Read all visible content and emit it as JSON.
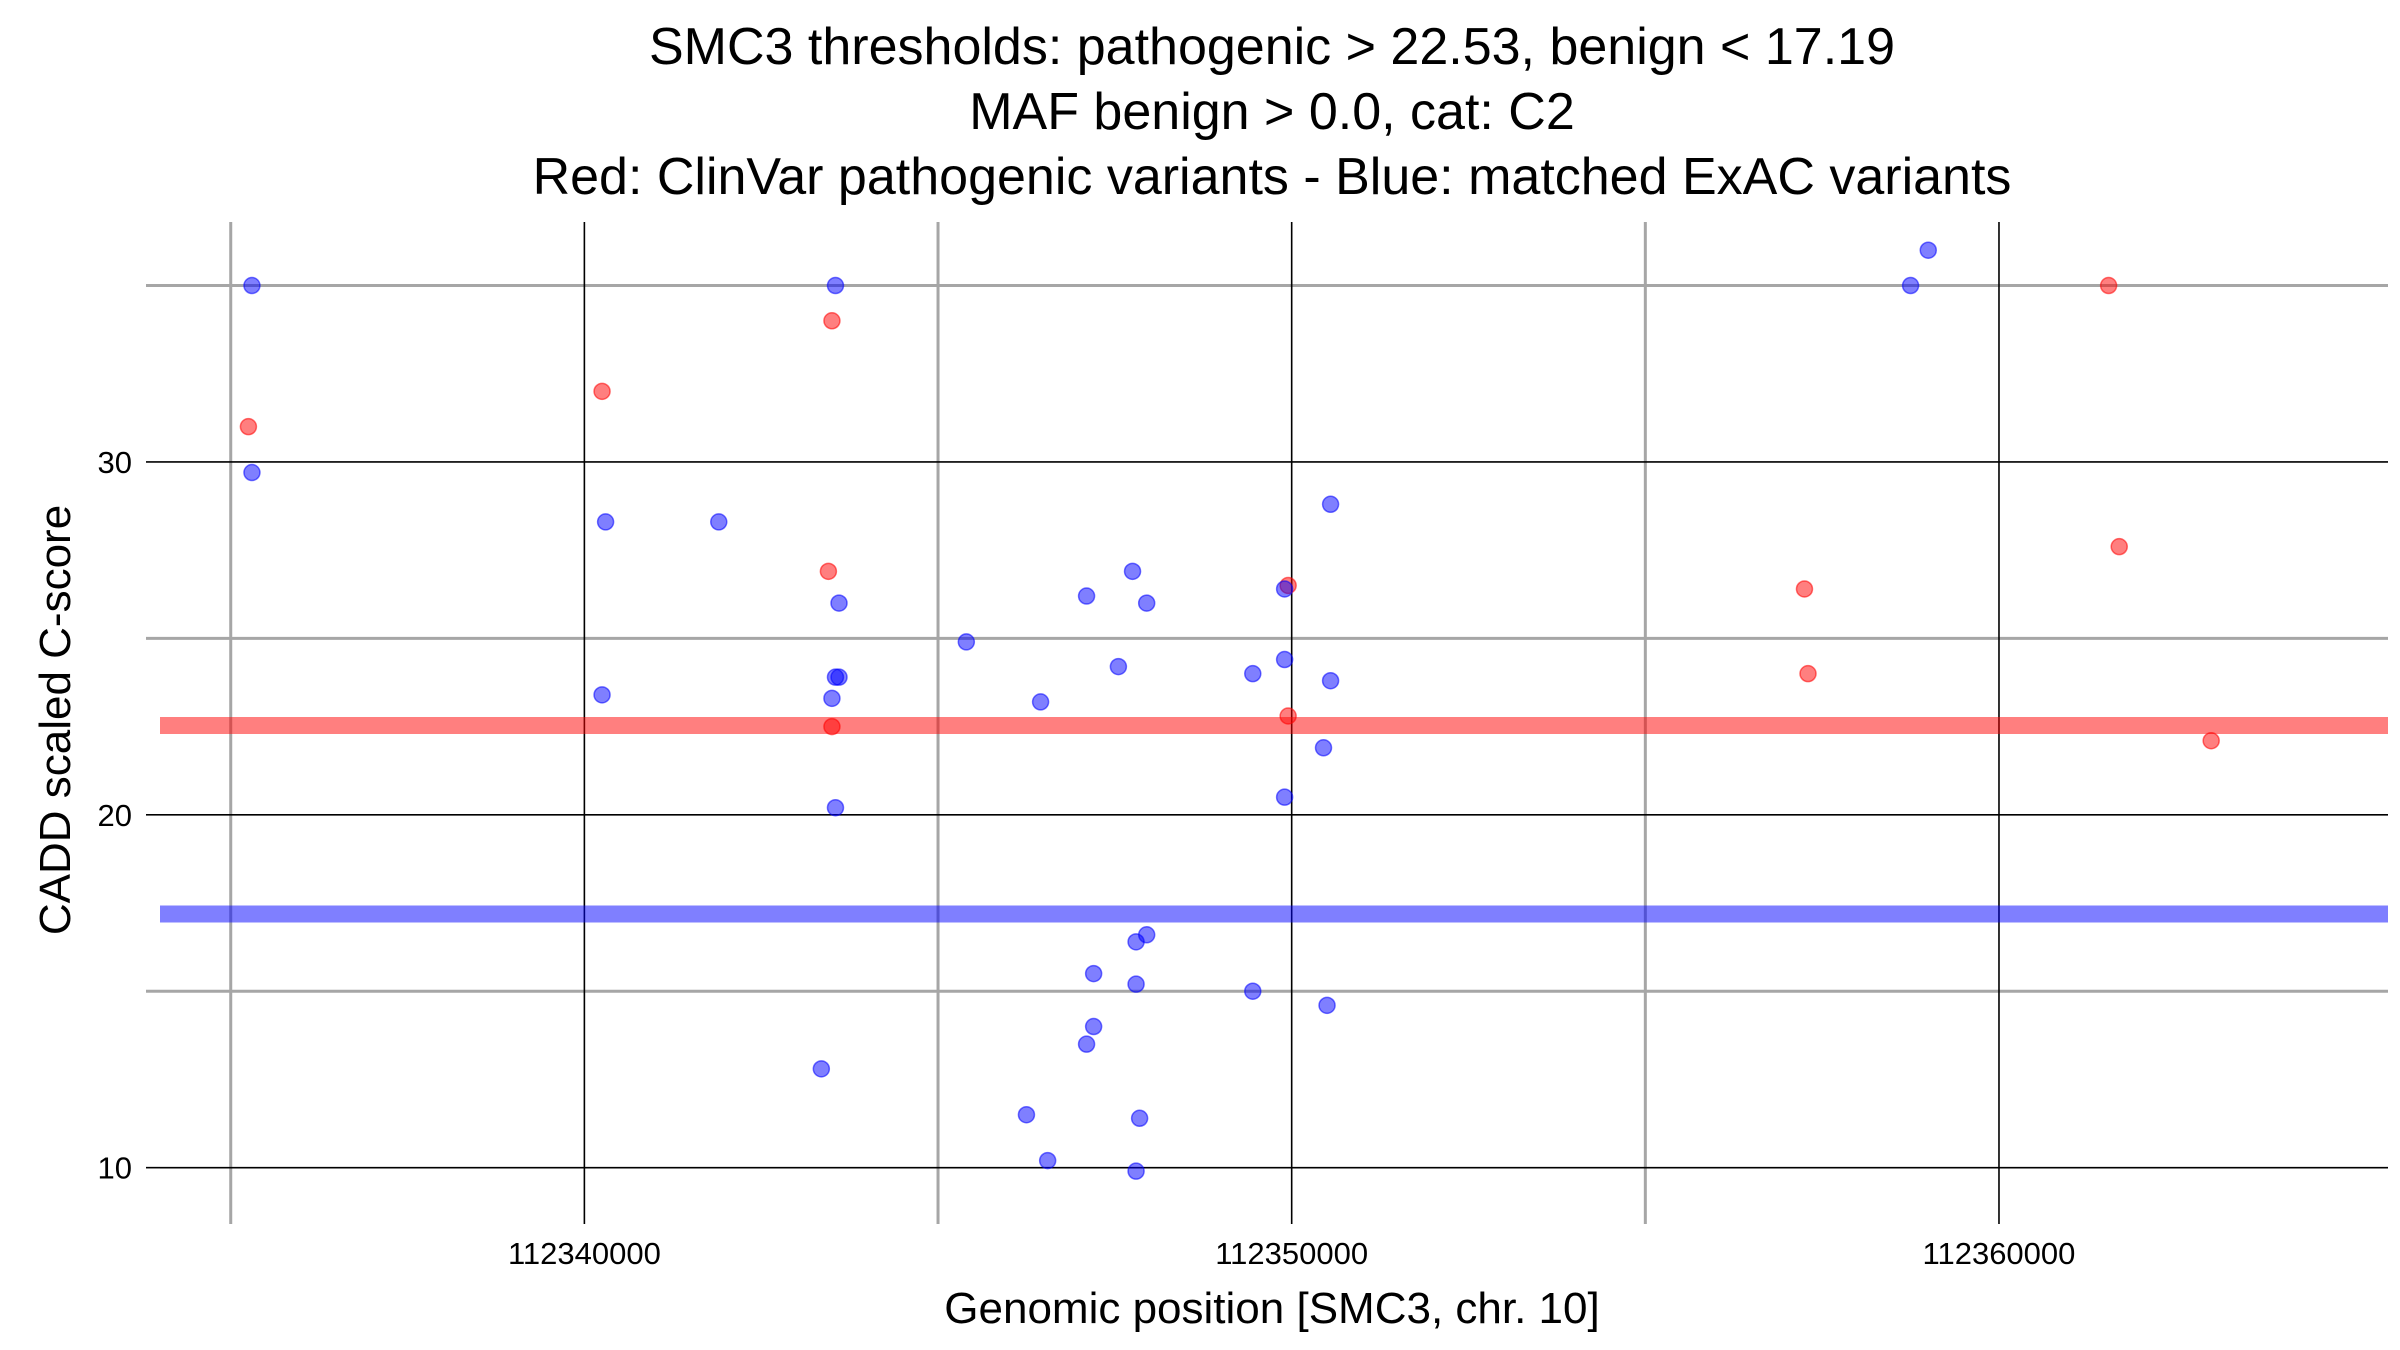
{
  "chart_data": {
    "type": "scatter",
    "title": [
      "SMC3 thresholds: pathogenic > 22.53, benign < 17.19",
      "MAF benign > 0.0, cat: C2",
      "Red: ClinVar pathogenic variants - Blue: matched ExAC variants"
    ],
    "xlabel": "Genomic position [SMC3, chr. 10]",
    "ylabel": "CADD scaled C-score",
    "xlim": [
      112334000,
      112365500
    ],
    "ylim": [
      8.8,
      36.8
    ],
    "x_major_ticks": [
      112340000,
      112350000,
      112360000
    ],
    "x_minor_ticks": [
      112335000,
      112345000,
      112355000
    ],
    "y_major_ticks": [
      10,
      20,
      30
    ],
    "y_minor_ticks": [
      15,
      25,
      35
    ],
    "x_tick_labels": [
      "112340000",
      "112350000",
      "112360000"
    ],
    "y_tick_labels": [
      "10",
      "20",
      "30"
    ],
    "grid": true,
    "colors": {
      "pathogenic": "#ff0000",
      "benign": "#0000ff",
      "pathogenic_threshold": "#ff0000",
      "benign_threshold": "#0000ff",
      "major_grid": "#000000",
      "minor_grid": "#a6a6a6"
    },
    "thresholds": [
      {
        "name": "pathogenic",
        "value": 22.53
      },
      {
        "name": "benign",
        "value": 17.19
      }
    ],
    "series": [
      {
        "name": "ClinVar pathogenic variants",
        "color": "#ff0000",
        "points": [
          {
            "x": 112335250,
            "y": 31.0
          },
          {
            "x": 112340250,
            "y": 32.0
          },
          {
            "x": 112343500,
            "y": 34.0
          },
          {
            "x": 112343500,
            "y": 22.5
          },
          {
            "x": 112343450,
            "y": 26.9
          },
          {
            "x": 112349950,
            "y": 26.5
          },
          {
            "x": 112349950,
            "y": 22.8
          },
          {
            "x": 112357250,
            "y": 26.4
          },
          {
            "x": 112357300,
            "y": 24.0
          },
          {
            "x": 112361550,
            "y": 35.0
          },
          {
            "x": 112361700,
            "y": 27.6
          },
          {
            "x": 112363000,
            "y": 22.1
          }
        ]
      },
      {
        "name": "matched ExAC variants",
        "color": "#0000ff",
        "points": [
          {
            "x": 112335300,
            "y": 35.0
          },
          {
            "x": 112335300,
            "y": 29.7
          },
          {
            "x": 112340300,
            "y": 28.3
          },
          {
            "x": 112340250,
            "y": 23.4
          },
          {
            "x": 112341900,
            "y": 28.3
          },
          {
            "x": 112345400,
            "y": 24.9
          },
          {
            "x": 112343550,
            "y": 35.0
          },
          {
            "x": 112343600,
            "y": 26.0
          },
          {
            "x": 112343550,
            "y": 23.9
          },
          {
            "x": 112343600,
            "y": 23.9
          },
          {
            "x": 112343500,
            "y": 23.3
          },
          {
            "x": 112343550,
            "y": 20.2
          },
          {
            "x": 112343350,
            "y": 12.8
          },
          {
            "x": 112346450,
            "y": 23.2
          },
          {
            "x": 112346250,
            "y": 11.5
          },
          {
            "x": 112346550,
            "y": 10.2
          },
          {
            "x": 112347100,
            "y": 26.2
          },
          {
            "x": 112347550,
            "y": 24.2
          },
          {
            "x": 112347750,
            "y": 26.9
          },
          {
            "x": 112347950,
            "y": 26.0
          },
          {
            "x": 112347950,
            "y": 16.6
          },
          {
            "x": 112347800,
            "y": 16.4
          },
          {
            "x": 112347200,
            "y": 15.5
          },
          {
            "x": 112347800,
            "y": 15.2
          },
          {
            "x": 112347200,
            "y": 14.0
          },
          {
            "x": 112347100,
            "y": 13.5
          },
          {
            "x": 112347850,
            "y": 11.4
          },
          {
            "x": 112347800,
            "y": 9.9
          },
          {
            "x": 112349900,
            "y": 26.4
          },
          {
            "x": 112349900,
            "y": 24.4
          },
          {
            "x": 112349450,
            "y": 24.0
          },
          {
            "x": 112349900,
            "y": 20.5
          },
          {
            "x": 112349450,
            "y": 15.0
          },
          {
            "x": 112350550,
            "y": 28.8
          },
          {
            "x": 112350550,
            "y": 23.8
          },
          {
            "x": 112350450,
            "y": 21.9
          },
          {
            "x": 112350500,
            "y": 14.6
          },
          {
            "x": 112358750,
            "y": 35.0
          },
          {
            "x": 112359000,
            "y": 36.0
          }
        ]
      }
    ]
  }
}
